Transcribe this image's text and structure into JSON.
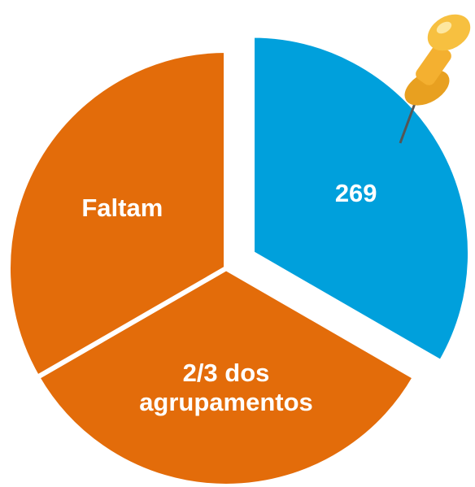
{
  "chart_data": {
    "type": "pie",
    "categories": [
      "269",
      "2/3 dos agrupamentos",
      "Faltam"
    ],
    "values": [
      33.3,
      33.3,
      33.3
    ],
    "colors": [
      "#00a0dc",
      "#e36c0a",
      "#e36c0a"
    ],
    "explode": [
      true,
      false,
      false
    ]
  }
}
